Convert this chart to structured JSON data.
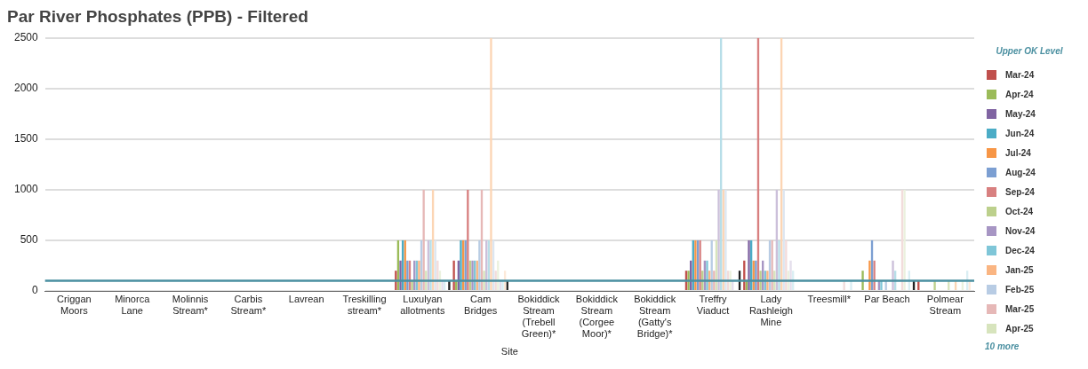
{
  "chart_data": {
    "type": "bar",
    "title": "Par River Phosphates (PPB) - Filtered",
    "xlabel": "Site",
    "categories": [
      "Criggan Moors",
      "Minorca Lane",
      "Molinnis Stream*",
      "Carbis Stream*",
      "Lavrean",
      "Treskilling stream*",
      "Luxulyan allotments",
      "Cam Bridges",
      "Bokiddick Stream (Trebell Green)*",
      "Bokiddick Stream (Corgee Moor)*",
      "Bokiddick Stream (Gatty's Bridge)*",
      "Treffry Viaduct",
      "Lady Rashleigh Mine",
      "Treesmill*",
      "Par Beach",
      "Polmear Stream"
    ],
    "series": [
      {
        "name": "Mar-24",
        "color": "#c0504d",
        "values": [
          null,
          null,
          null,
          null,
          null,
          null,
          200,
          300,
          null,
          null,
          null,
          200,
          300,
          null,
          null,
          100
        ]
      },
      {
        "name": "Apr-24",
        "color": "#9bbb59",
        "values": [
          null,
          null,
          null,
          null,
          null,
          null,
          500,
          100,
          null,
          null,
          null,
          200,
          100,
          null,
          200,
          null
        ]
      },
      {
        "name": "May-24",
        "color": "#8064a2",
        "values": [
          null,
          null,
          null,
          null,
          null,
          null,
          300,
          300,
          null,
          null,
          null,
          300,
          500,
          null,
          null,
          null
        ]
      },
      {
        "name": "Jun-24",
        "color": "#4bacc6",
        "values": [
          null,
          null,
          null,
          null,
          null,
          null,
          500,
          500,
          null,
          null,
          null,
          500,
          500,
          null,
          null,
          null
        ]
      },
      {
        "name": "Jul-24",
        "color": "#f79646",
        "values": [
          null,
          null,
          null,
          null,
          null,
          null,
          500,
          500,
          null,
          null,
          null,
          500,
          300,
          null,
          300,
          null
        ]
      },
      {
        "name": "Aug-24",
        "color": "#7c9fd2",
        "values": [
          null,
          null,
          null,
          null,
          null,
          null,
          300,
          500,
          null,
          null,
          null,
          500,
          300,
          null,
          500,
          null
        ]
      },
      {
        "name": "Sep-24",
        "color": "#d88080",
        "values": [
          null,
          null,
          null,
          null,
          null,
          null,
          300,
          1000,
          null,
          null,
          null,
          500,
          2500,
          null,
          300,
          null
        ]
      },
      {
        "name": "Oct-24",
        "color": "#bcd08c",
        "values": [
          null,
          null,
          null,
          null,
          null,
          null,
          100,
          300,
          null,
          null,
          null,
          200,
          200,
          null,
          null,
          100
        ]
      },
      {
        "name": "Nov-24",
        "color": "#a796c4",
        "values": [
          null,
          null,
          null,
          null,
          null,
          null,
          300,
          300,
          null,
          null,
          null,
          300,
          300,
          null,
          100,
          null
        ]
      },
      {
        "name": "Dec-24",
        "color": "#7fc6d8",
        "values": [
          null,
          null,
          null,
          null,
          null,
          null,
          300,
          300,
          null,
          null,
          null,
          300,
          200,
          null,
          100,
          null
        ]
      },
      {
        "name": "Jan-25",
        "color": "#fab582",
        "values": [
          null,
          null,
          null,
          null,
          null,
          null,
          300,
          300,
          null,
          null,
          null,
          200,
          200,
          null,
          null,
          null
        ]
      },
      {
        "name": "Feb-25",
        "color": "#b8cce4",
        "values": [
          null,
          null,
          null,
          null,
          null,
          null,
          500,
          500,
          null,
          null,
          null,
          500,
          500,
          null,
          100,
          null
        ]
      },
      {
        "name": "Mar-25",
        "color": "#e6b8b7",
        "values": [
          null,
          null,
          null,
          null,
          null,
          null,
          1000,
          1000,
          null,
          null,
          null,
          200,
          500,
          null,
          null,
          null
        ]
      },
      {
        "name": "Apr-25",
        "color": "#d7e4bd",
        "values": [
          null,
          null,
          null,
          null,
          null,
          null,
          200,
          200,
          null,
          null,
          null,
          500,
          200,
          null,
          null,
          100
        ]
      },
      {
        "color": "#ccc0da",
        "values": [
          null,
          null,
          null,
          null,
          null,
          null,
          500,
          500,
          null,
          null,
          null,
          1000,
          1000,
          null,
          300,
          null
        ]
      },
      {
        "color": "#b7dee8",
        "values": [
          null,
          null,
          null,
          null,
          null,
          null,
          500,
          500,
          null,
          null,
          null,
          2500,
          500,
          null,
          200,
          null
        ]
      },
      {
        "color": "#fcd5b4",
        "values": [
          null,
          null,
          null,
          null,
          null,
          null,
          1000,
          2500,
          null,
          null,
          null,
          1000,
          2500,
          null,
          null,
          100
        ]
      },
      {
        "color": "#dce6f1",
        "values": [
          null,
          null,
          null,
          null,
          null,
          null,
          500,
          500,
          null,
          null,
          null,
          1000,
          1000,
          null,
          null,
          null
        ]
      },
      {
        "color": "#f2dcdb",
        "values": [
          null,
          null,
          null,
          null,
          null,
          null,
          300,
          200,
          null,
          null,
          null,
          200,
          500,
          100,
          1000,
          null
        ]
      },
      {
        "color": "#ebf1de",
        "values": [
          null,
          null,
          null,
          null,
          null,
          null,
          200,
          300,
          null,
          null,
          null,
          200,
          200,
          null,
          1000,
          100
        ]
      },
      {
        "color": "#e4dfec",
        "values": [
          null,
          null,
          null,
          null,
          null,
          null,
          100,
          100,
          null,
          null,
          null,
          100,
          300,
          null,
          null,
          null
        ]
      },
      {
        "color": "#daeef3",
        "values": [
          null,
          null,
          null,
          null,
          null,
          null,
          100,
          100,
          null,
          null,
          null,
          null,
          200,
          100,
          200,
          200
        ]
      },
      {
        "color": "#fde9d9",
        "values": [
          null,
          null,
          null,
          null,
          null,
          null,
          null,
          200,
          null,
          null,
          null,
          null,
          null,
          null,
          null,
          100
        ]
      },
      {
        "color": "#222222",
        "values": [
          null,
          null,
          null,
          null,
          null,
          null,
          100,
          100,
          null,
          null,
          null,
          200,
          null,
          null,
          100,
          null
        ]
      }
    ],
    "ylim": [
      0,
      2500
    ],
    "yticks": [
      0,
      500,
      1000,
      1500,
      2000,
      2500
    ],
    "grid": "y",
    "legend": "right",
    "ref_lines": [
      {
        "axis": "y",
        "value": 100,
        "label": "Upper OK Level",
        "color": "#4a8fa0"
      }
    ],
    "annotations": [
      "10 more"
    ]
  }
}
